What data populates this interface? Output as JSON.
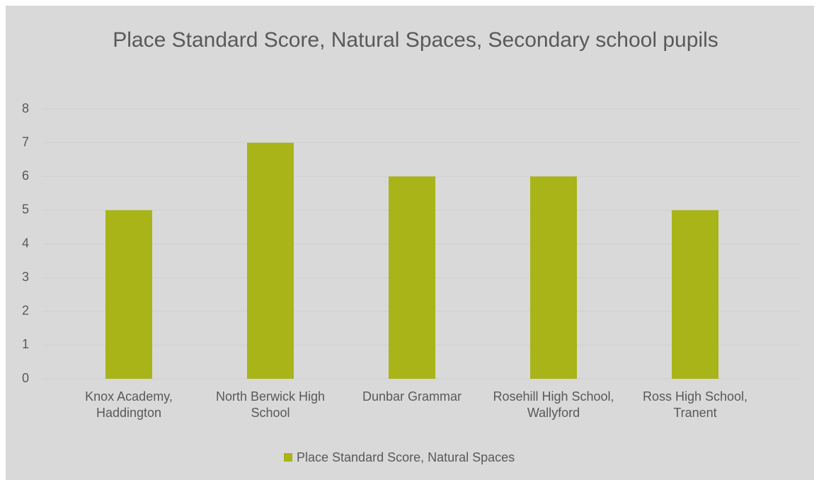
{
  "chart_data": {
    "type": "bar",
    "title": "Place Standard Score, Natural Spaces, Secondary school pupils",
    "categories": [
      "Knox Academy, Haddington",
      "North Berwick High School",
      "Dunbar Grammar",
      "Rosehill High School, Wallyford",
      "Ross High School, Tranent"
    ],
    "series": [
      {
        "name": "Place Standard Score, Natural Spaces",
        "color": "#a8b418",
        "values": [
          5,
          7,
          6,
          6,
          5
        ]
      }
    ],
    "ylim": [
      0,
      8
    ],
    "yticks": [
      0,
      1,
      2,
      3,
      4,
      5,
      6,
      7,
      8
    ],
    "grid": true,
    "legend": "bottom"
  }
}
